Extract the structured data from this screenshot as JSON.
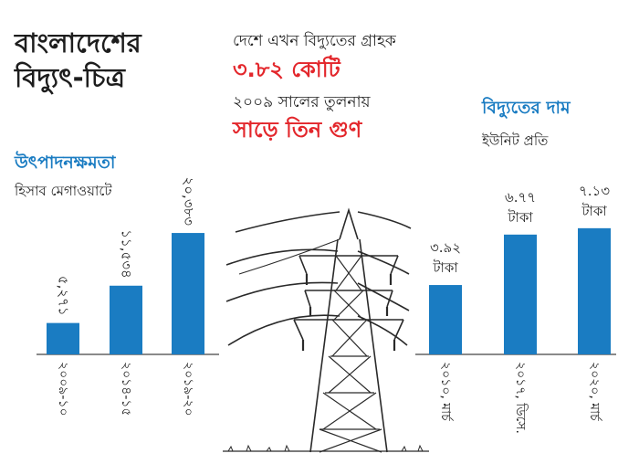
{
  "header": {
    "title_line1": "বাংলাদেশের",
    "title_line2": "বিদ্যুৎ-চিত্র"
  },
  "callouts": {
    "line1": "দেশে এখন বিদ্যুতের গ্রাহক",
    "value1": "৩.৮২ কোটি",
    "line2": "২০০৯ সালের তুলনায়",
    "value2": "সাড়ে তিন গুণ"
  },
  "colors": {
    "bar": "#1a7cc2",
    "highlight": "#e3262b",
    "title_blue": "#1a7cc2"
  },
  "illustration": {
    "icon": "power-transmission-tower-icon"
  },
  "chart_data": [
    {
      "type": "bar",
      "title": "উৎপাদনক্ষমতা",
      "subtitle": "হিসাব মেগাওয়াটে",
      "categories": [
        "২০০৯-১০",
        "২০১৪-১৫",
        "২০১৯-২০"
      ],
      "values": [
        5271,
        11534,
        20383
      ],
      "value_labels": [
        "৫,২৭১",
        "১১,৫৩৪",
        "২০,৩৮৩"
      ],
      "ylim": [
        0,
        23000
      ],
      "grid": false
    },
    {
      "type": "bar",
      "title": "বিদ্যুতের দাম",
      "subtitle": "ইউনিট প্রতি",
      "categories": [
        "২০১০, মার্চ",
        "২০১৭, ডিসে.",
        "২০২০, মার্চ"
      ],
      "values": [
        3.92,
        6.77,
        7.13
      ],
      "value_labels": [
        "৩.৯২",
        "৬.৭৭",
        "৭.১৩"
      ],
      "unit": "টাকা",
      "ylim": [
        0,
        8
      ],
      "grid": false
    }
  ]
}
